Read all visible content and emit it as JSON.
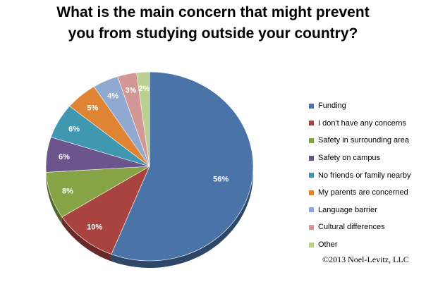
{
  "chart_data": {
    "type": "pie",
    "title": "What is the main concern that might prevent you from studying outside your country?",
    "title_lines": [
      "What is the main concern that might prevent",
      "you from studying outside your country?"
    ],
    "slices": [
      {
        "label": "Funding",
        "value": 56,
        "display": "56%",
        "color": "#4a73a8"
      },
      {
        "label": "I don't have any concerns",
        "value": 10,
        "display": "10%",
        "color": "#a84340"
      },
      {
        "label": "Safety in surrounding area",
        "value": 8,
        "display": "8%",
        "color": "#86a446"
      },
      {
        "label": "Safety on campus",
        "value": 6,
        "display": "6%",
        "color": "#6c558d"
      },
      {
        "label": "No friends or family nearby",
        "value": 6,
        "display": "6%",
        "color": "#3f97b0"
      },
      {
        "label": "My parents are concerned",
        "value": 5,
        "display": "5%",
        "color": "#de8433"
      },
      {
        "label": "Language barrier",
        "value": 4,
        "display": "4%",
        "color": "#91a9d1"
      },
      {
        "label": "Cultural differences",
        "value": 3,
        "display": "3%",
        "color": "#d39895"
      },
      {
        "label": "Other",
        "value": 2,
        "display": "2%",
        "color": "#b9d08e"
      }
    ],
    "legend_position": "right",
    "grid": false
  },
  "credit": "©2013 Noel-Levitz, LLC"
}
